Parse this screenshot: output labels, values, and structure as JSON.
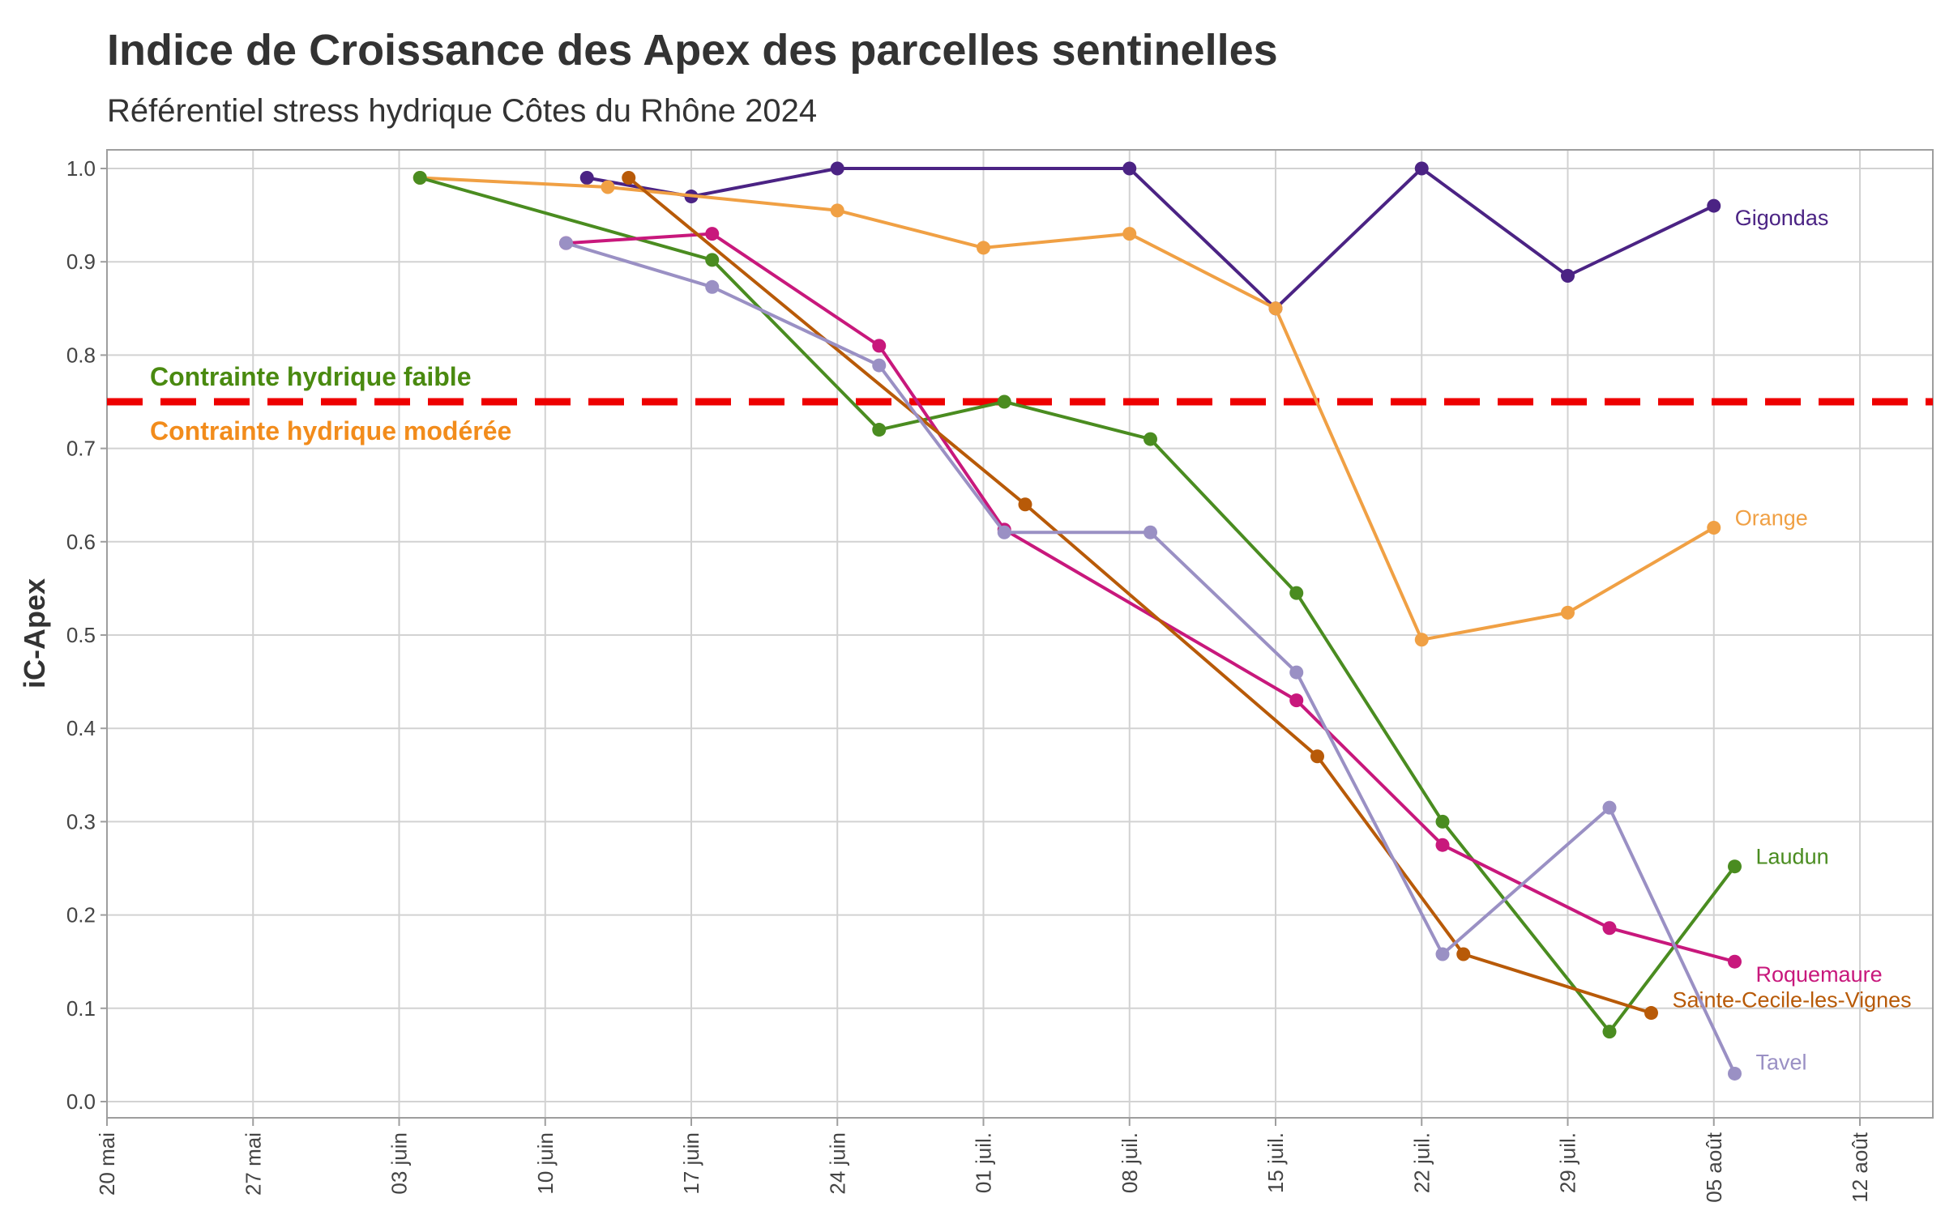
{
  "chart_data": {
    "type": "line",
    "title": "Indice de Croissance des Apex des parcelles sentinelles",
    "subtitle": "Référentiel stress hydrique Côtes du Rhône 2024",
    "ylabel": "iC-Apex",
    "xlabel": "",
    "ylim": [
      0,
      1
    ],
    "xlim": [
      "2024-05-20",
      "2024-08-16"
    ],
    "grid": true,
    "y_ticks": [
      "0.0",
      "0.1",
      "0.2",
      "0.3",
      "0.4",
      "0.5",
      "0.6",
      "0.7",
      "0.8",
      "0.9",
      "1.0"
    ],
    "x_ticks": [
      {
        "date": "2024-05-20",
        "label": "20 mai"
      },
      {
        "date": "2024-05-27",
        "label": "27 mai"
      },
      {
        "date": "2024-06-03",
        "label": "03 juin"
      },
      {
        "date": "2024-06-10",
        "label": "10 juin"
      },
      {
        "date": "2024-06-17",
        "label": "17 juin"
      },
      {
        "date": "2024-06-24",
        "label": "24 juin"
      },
      {
        "date": "2024-07-01",
        "label": "01 juil."
      },
      {
        "date": "2024-07-08",
        "label": "08 juil."
      },
      {
        "date": "2024-07-15",
        "label": "15 juil."
      },
      {
        "date": "2024-07-22",
        "label": "22 juil."
      },
      {
        "date": "2024-07-29",
        "label": "29 juil."
      },
      {
        "date": "2024-08-05",
        "label": "05 août"
      },
      {
        "date": "2024-08-12",
        "label": "12 août"
      }
    ],
    "threshold": {
      "value": 0.75,
      "color": "#ee0000",
      "label_above": "Contrainte hydrique faible",
      "label_above_color": "#4a8a10",
      "label_below": "Contrainte hydrique modérée",
      "label_below_color": "#f28c1c"
    },
    "series": [
      {
        "name": "Gigondas",
        "color": "#4b2384",
        "x": [
          "2024-06-12",
          "2024-06-17",
          "2024-06-24",
          "2024-07-08",
          "2024-07-15",
          "2024-07-22",
          "2024-07-29",
          "2024-08-05"
        ],
        "y": [
          0.99,
          0.97,
          1.0,
          1.0,
          0.85,
          1.0,
          0.885,
          0.96
        ]
      },
      {
        "name": "Orange",
        "color": "#f0a044",
        "x": [
          "2024-06-04",
          "2024-06-13",
          "2024-06-24",
          "2024-07-01",
          "2024-07-08",
          "2024-07-15",
          "2024-07-22",
          "2024-07-29",
          "2024-08-05"
        ],
        "y": [
          0.99,
          0.98,
          0.955,
          0.915,
          0.93,
          0.85,
          0.495,
          0.524,
          0.615
        ]
      },
      {
        "name": "Laudun",
        "color": "#4a8c20",
        "x": [
          "2024-06-04",
          "2024-06-18",
          "2024-06-26",
          "2024-07-02",
          "2024-07-09",
          "2024-07-16",
          "2024-07-23",
          "2024-07-31",
          "2024-08-06"
        ],
        "y": [
          0.99,
          0.902,
          0.72,
          0.75,
          0.71,
          0.545,
          0.3,
          0.075,
          0.252
        ]
      },
      {
        "name": "Roquemaure",
        "color": "#c8187c",
        "x": [
          "2024-06-11",
          "2024-06-18",
          "2024-06-26",
          "2024-07-02",
          "2024-07-16",
          "2024-07-23",
          "2024-07-31",
          "2024-08-06"
        ],
        "y": [
          0.92,
          0.93,
          0.81,
          0.613,
          0.43,
          0.275,
          0.186,
          0.15
        ]
      },
      {
        "name": "Sainte-Cecile-les-Vignes",
        "color": "#b85a08",
        "x": [
          "2024-06-14",
          "2024-07-03",
          "2024-07-17",
          "2024-07-24",
          "2024-08-02"
        ],
        "y": [
          0.99,
          0.64,
          0.37,
          0.158,
          0.095
        ]
      },
      {
        "name": "Tavel",
        "color": "#9a90c4",
        "x": [
          "2024-06-11",
          "2024-06-18",
          "2024-06-26",
          "2024-07-02",
          "2024-07-09",
          "2024-07-16",
          "2024-07-23",
          "2024-07-31",
          "2024-08-06"
        ],
        "y": [
          0.92,
          0.873,
          0.789,
          0.61,
          0.61,
          0.46,
          0.158,
          0.315,
          0.03
        ]
      }
    ]
  }
}
